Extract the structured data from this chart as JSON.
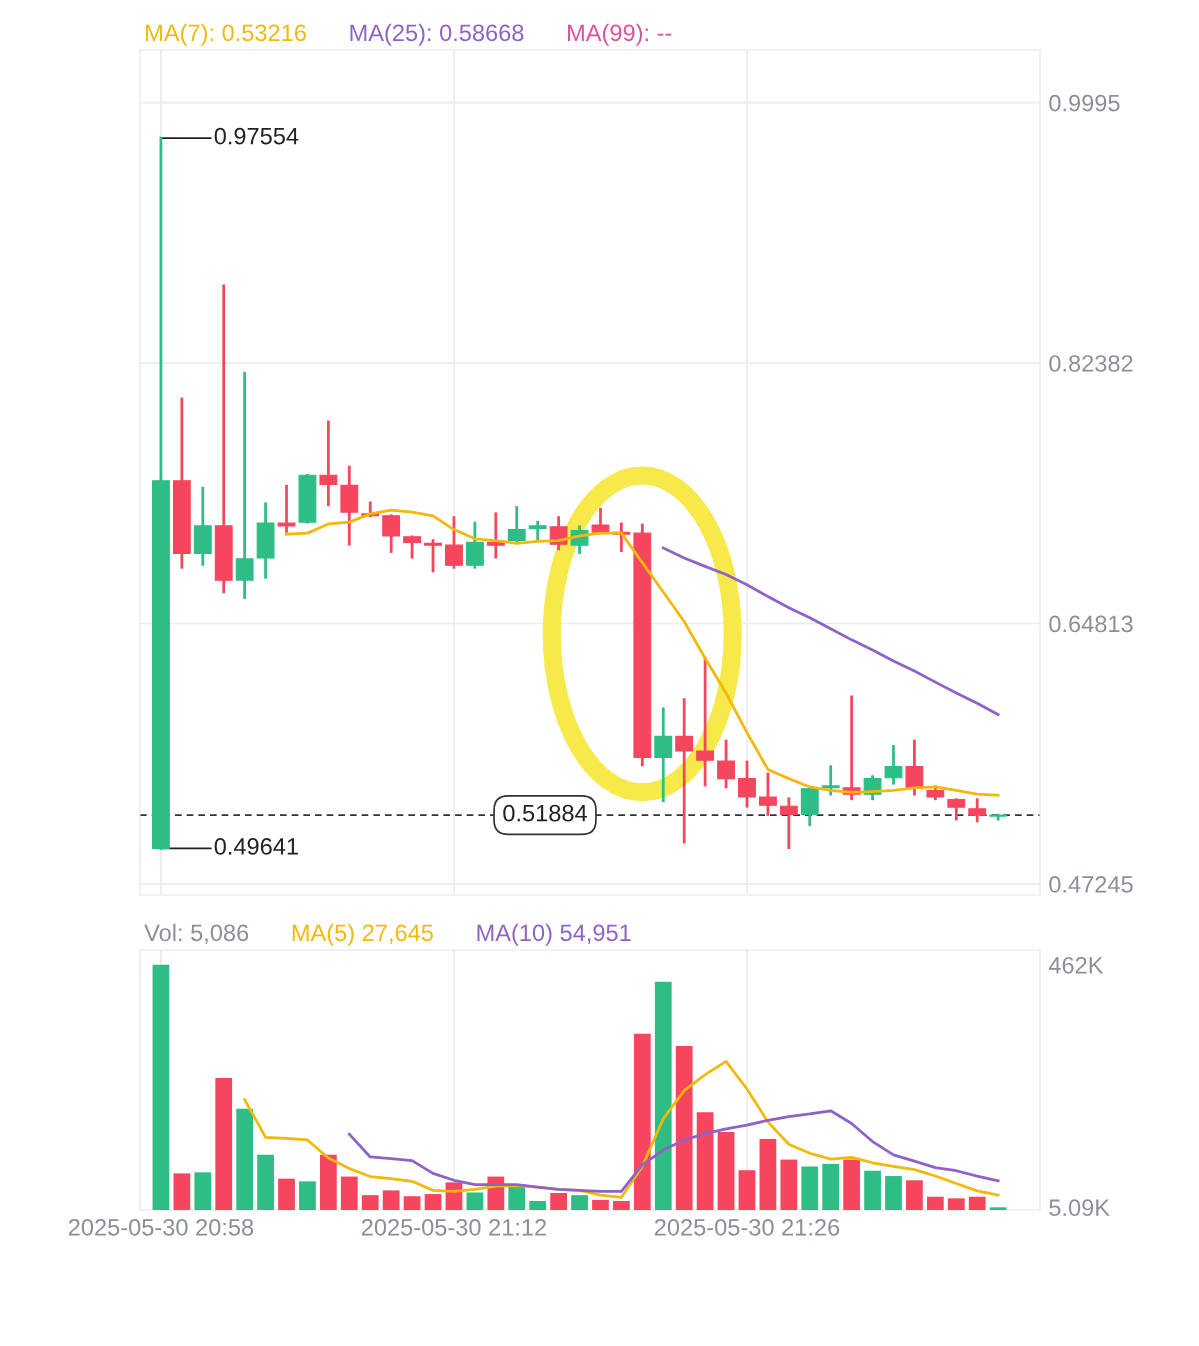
{
  "chart_data": [
    {
      "type": "candlestick",
      "x": [
        "2025-05-30T20:58",
        "2025-05-30T20:59",
        "2025-05-30T21:00",
        "2025-05-30T21:01",
        "2025-05-30T21:02",
        "2025-05-30T21:03",
        "2025-05-30T21:04",
        "2025-05-30T21:05",
        "2025-05-30T21:06",
        "2025-05-30T21:07",
        "2025-05-30T21:08",
        "2025-05-30T21:09",
        "2025-05-30T21:10",
        "2025-05-30T21:11",
        "2025-05-30T21:12",
        "2025-05-30T21:13",
        "2025-05-30T21:14",
        "2025-05-30T21:15",
        "2025-05-30T21:16",
        "2025-05-30T21:17",
        "2025-05-30T21:18",
        "2025-05-30T21:19",
        "2025-05-30T21:20",
        "2025-05-30T21:21",
        "2025-05-30T21:22",
        "2025-05-30T21:23",
        "2025-05-30T21:24",
        "2025-05-30T21:25",
        "2025-05-30T21:26",
        "2025-05-30T21:27",
        "2025-05-30T21:28",
        "2025-05-30T21:29",
        "2025-05-30T21:30",
        "2025-05-30T21:31",
        "2025-05-30T21:32",
        "2025-05-30T21:33",
        "2025-05-30T21:34",
        "2025-05-30T21:35",
        "2025-05-30T21:36",
        "2025-05-30T21:37",
        "2025-05-30T21:38"
      ],
      "ohlc": [
        [
          0.49641,
          0.97554,
          0.49641,
          0.7444
        ],
        [
          0.7444,
          0.7996,
          0.6861,
          0.6954
        ],
        [
          0.6954,
          0.7394,
          0.688,
          0.714
        ],
        [
          0.714,
          0.8758,
          0.6694,
          0.6774
        ],
        [
          0.6774,
          0.817,
          0.6657,
          0.6917
        ],
        [
          0.6923,
          0.7289,
          0.6793,
          0.7159
        ],
        [
          0.7159,
          0.7407,
          0.7103,
          0.714
        ],
        [
          0.7165,
          0.7481,
          0.7165,
          0.7481
        ],
        [
          0.7481,
          0.7841,
          0.7283,
          0.7419
        ],
        [
          0.7413,
          0.7537,
          0.7016,
          0.7233
        ],
        [
          0.7221,
          0.7295,
          0.7208,
          0.7208
        ],
        [
          0.7208,
          0.7208,
          0.6967,
          0.7072
        ],
        [
          0.7066,
          0.7066,
          0.6929,
          0.7029
        ],
        [
          0.7022,
          0.7041,
          0.6836,
          0.701
        ],
        [
          0.701,
          0.7196,
          0.6861,
          0.6874
        ],
        [
          0.6874,
          0.7159,
          0.6861,
          0.7029
        ],
        [
          0.7029,
          0.7221,
          0.6929,
          0.701
        ],
        [
          0.7041,
          0.7264,
          0.7041,
          0.7115
        ],
        [
          0.7122,
          0.7165,
          0.7053,
          0.714
        ],
        [
          0.7134,
          0.7196,
          0.6985,
          0.7016
        ],
        [
          0.701,
          0.7134,
          0.696,
          0.7109
        ],
        [
          0.7146,
          0.7252,
          0.7097,
          0.7097
        ],
        [
          0.7097,
          0.7153,
          0.6973,
          0.7084
        ],
        [
          0.7091,
          0.7146,
          0.5528,
          0.5578
        ],
        [
          0.5578,
          0.5906,
          0.5286,
          0.572
        ],
        [
          0.572,
          0.5968,
          0.5007,
          0.5621
        ],
        [
          0.5621,
          0.6247,
          0.5392,
          0.5559
        ],
        [
          0.5553,
          0.5689,
          0.5379,
          0.5435
        ],
        [
          0.5435,
          0.5547,
          0.5249,
          0.5311
        ],
        [
          0.5311,
          0.5466,
          0.5193,
          0.5255
        ],
        [
          0.5249,
          0.5299,
          0.497,
          0.5193
        ],
        [
          0.5193,
          0.5367,
          0.5125,
          0.5367
        ],
        [
          0.5373,
          0.5516,
          0.533,
          0.5386
        ],
        [
          0.5373,
          0.5987,
          0.5299,
          0.533
        ],
        [
          0.533,
          0.5448,
          0.5299,
          0.5435
        ],
        [
          0.5441,
          0.5652,
          0.5404,
          0.5516
        ],
        [
          0.5516,
          0.5689,
          0.533,
          0.5373
        ],
        [
          0.5355,
          0.5379,
          0.5299,
          0.5311
        ],
        [
          0.5293,
          0.5293,
          0.5162,
          0.5243
        ],
        [
          0.5231,
          0.5293,
          0.515,
          0.51884
        ],
        [
          0.5182,
          0.51884,
          0.5162,
          0.51884
        ]
      ],
      "colors": [
        "#2ebd85",
        "#f6465d",
        "#2ebd85",
        "#f6465d",
        "#2ebd85",
        "#2ebd85",
        "#f6465d",
        "#2ebd85",
        "#f6465d",
        "#f6465d",
        "#f6465d",
        "#f6465d",
        "#f6465d",
        "#f6465d",
        "#f6465d",
        "#2ebd85",
        "#f6465d",
        "#2ebd85",
        "#2ebd85",
        "#f6465d",
        "#2ebd85",
        "#f6465d",
        "#f6465d",
        "#f6465d",
        "#2ebd85",
        "#f6465d",
        "#f6465d",
        "#f6465d",
        "#f6465d",
        "#f6465d",
        "#f6465d",
        "#2ebd85",
        "#2ebd85",
        "#f6465d",
        "#2ebd85",
        "#2ebd85",
        "#f6465d",
        "#f6465d",
        "#f6465d",
        "#f6465d",
        "#2ebd85"
      ],
      "series": [
        {
          "name": "MA(7): 0.53216",
          "type": "line",
          "color": "#f0b90b",
          "values": [
            null,
            null,
            null,
            null,
            null,
            null,
            0.7084,
            0.7091,
            0.7153,
            0.7165,
            0.7221,
            0.7246,
            0.7233,
            0.7208,
            0.7115,
            0.7053,
            0.7041,
            0.7022,
            0.7035,
            0.7041,
            0.7072,
            0.7091,
            0.7091,
            0.6892,
            0.6694,
            0.6495,
            0.6247,
            0.6012,
            0.5745,
            0.5497,
            0.5435,
            0.5379,
            0.5355,
            0.5342,
            0.5348,
            0.5355,
            0.5373,
            0.5379,
            0.5355,
            0.533,
            0.5322
          ]
        },
        {
          "name": "MA(25): 0.58668",
          "type": "line",
          "color": "#8f63c6",
          "values": [
            null,
            null,
            null,
            null,
            null,
            null,
            null,
            null,
            null,
            null,
            null,
            null,
            null,
            null,
            null,
            null,
            null,
            null,
            null,
            null,
            null,
            null,
            null,
            null,
            0.6991,
            0.6923,
            0.6867,
            0.6812,
            0.6743,
            0.6663,
            0.6588,
            0.652,
            0.6446,
            0.6371,
            0.6303,
            0.6229,
            0.6161,
            0.6086,
            0.6012,
            0.5944,
            0.5867
          ]
        },
        {
          "name": "MA(99): --",
          "type": "line",
          "color": "#d9529f",
          "values": [
            null,
            null,
            null,
            null,
            null,
            null,
            null,
            null,
            null,
            null,
            null,
            null,
            null,
            null,
            null,
            null,
            null,
            null,
            null,
            null,
            null,
            null,
            null,
            null,
            null,
            null,
            null,
            null,
            null,
            null,
            null,
            null,
            null,
            null,
            null,
            null,
            null,
            null,
            null,
            null,
            null
          ]
        }
      ],
      "xlim": [
        "2025-05-30T20:57",
        "2025-05-30T21:40"
      ],
      "xticks": [
        {
          "value": "2025-05-30T20:58",
          "label": null
        },
        {
          "value": "2025-05-30T21:12",
          "label": null
        },
        {
          "value": "2025-05-30T21:26",
          "label": null
        }
      ],
      "ylim": [
        0.465,
        1.035
      ],
      "yticks": [
        0.47245,
        0.64813,
        0.82382,
        0.9995
      ],
      "grid": true,
      "tick_labels": "y",
      "ref_lines": [
        {
          "axis": "y",
          "value": 0.51884,
          "label": "0.51884",
          "color": "#333333",
          "line_style": "dashed"
        }
      ],
      "annotations": [
        {
          "text": "0.97554",
          "x": "2025-05-30T20:58",
          "y": 0.97554
        },
        {
          "text": "0.49641",
          "x": "2025-05-30T20:58",
          "y": 0.49641
        }
      ]
    },
    {
      "type": "bar",
      "x": [
        "2025-05-30T20:58",
        "2025-05-30T20:59",
        "2025-05-30T21:00",
        "2025-05-30T21:01",
        "2025-05-30T21:02",
        "2025-05-30T21:03",
        "2025-05-30T21:04",
        "2025-05-30T21:05",
        "2025-05-30T21:06",
        "2025-05-30T21:07",
        "2025-05-30T21:08",
        "2025-05-30T21:09",
        "2025-05-30T21:10",
        "2025-05-30T21:11",
        "2025-05-30T21:12",
        "2025-05-30T21:13",
        "2025-05-30T21:14",
        "2025-05-30T21:15",
        "2025-05-30T21:16",
        "2025-05-30T21:17",
        "2025-05-30T21:18",
        "2025-05-30T21:19",
        "2025-05-30T21:20",
        "2025-05-30T21:21",
        "2025-05-30T21:22",
        "2025-05-30T21:23",
        "2025-05-30T21:24",
        "2025-05-30T21:25",
        "2025-05-30T21:26",
        "2025-05-30T21:27",
        "2025-05-30T21:28",
        "2025-05-30T21:29",
        "2025-05-30T21:30",
        "2025-05-30T21:31",
        "2025-05-30T21:32",
        "2025-05-30T21:33",
        "2025-05-30T21:34",
        "2025-05-30T21:35",
        "2025-05-30T21:36",
        "2025-05-30T21:37",
        "2025-05-30T21:38"
      ],
      "values": [
        462000,
        69000,
        71000,
        249000,
        191000,
        104000,
        59000,
        54000,
        104000,
        63000,
        28000,
        37000,
        26000,
        30000,
        52000,
        33000,
        63000,
        45000,
        17000,
        32000,
        28000,
        19000,
        17000,
        332000,
        430000,
        309000,
        184000,
        147000,
        75000,
        134000,
        95000,
        82000,
        87000,
        95000,
        74000,
        64000,
        56000,
        25000,
        22000,
        25000,
        5086
      ],
      "colors": [
        "#2ebd85",
        "#f6465d",
        "#2ebd85",
        "#f6465d",
        "#2ebd85",
        "#2ebd85",
        "#f6465d",
        "#2ebd85",
        "#f6465d",
        "#f6465d",
        "#f6465d",
        "#f6465d",
        "#f6465d",
        "#f6465d",
        "#f6465d",
        "#2ebd85",
        "#f6465d",
        "#2ebd85",
        "#2ebd85",
        "#f6465d",
        "#2ebd85",
        "#f6465d",
        "#f6465d",
        "#f6465d",
        "#2ebd85",
        "#f6465d",
        "#f6465d",
        "#f6465d",
        "#f6465d",
        "#f6465d",
        "#f6465d",
        "#2ebd85",
        "#2ebd85",
        "#f6465d",
        "#2ebd85",
        "#2ebd85",
        "#f6465d",
        "#f6465d",
        "#f6465d",
        "#f6465d",
        "#2ebd85"
      ],
      "series": [
        {
          "name": "MA(5) 27,645",
          "type": "line",
          "color": "#f0b90b",
          "values": [
            null,
            null,
            null,
            null,
            208000,
            137000,
            135000,
            132000,
            98000,
            78000,
            63000,
            59000,
            54000,
            37000,
            35000,
            39000,
            45000,
            46000,
            43000,
            39000,
            37000,
            28000,
            24000,
            82000,
            172000,
            225000,
            255000,
            280000,
            228000,
            166000,
            124000,
            107000,
            96000,
            99000,
            89000,
            82000,
            76000,
            64000,
            50000,
            36000,
            28000
          ]
        },
        {
          "name": "MA(10) 54,951",
          "type": "line",
          "color": "#8f63c6",
          "values": [
            null,
            null,
            null,
            null,
            null,
            null,
            null,
            null,
            null,
            143000,
            100000,
            97000,
            93000,
            69000,
            56000,
            48000,
            48000,
            48000,
            43000,
            39000,
            37000,
            35000,
            35000,
            85000,
            113000,
            132000,
            144000,
            153000,
            160000,
            169000,
            176000,
            181000,
            187000,
            163000,
            129000,
            104000,
            92000,
            80000,
            74000,
            64000,
            55000
          ]
        }
      ],
      "xlim": [
        "2025-05-30T20:57",
        "2025-05-30T21:40"
      ],
      "xticks": [
        {
          "value": "2025-05-30T20:58",
          "label": "2025-05-30 20:58"
        },
        {
          "value": "2025-05-30T21:12",
          "label": "2025-05-30 21:12"
        },
        {
          "value": "2025-05-30T21:26",
          "label": "2025-05-30 21:26"
        }
      ],
      "ylim": [
        0,
        490000
      ],
      "yticks": [
        {
          "value": 5086,
          "label": "5.09K"
        },
        {
          "value": 462000,
          "label": "462K"
        }
      ],
      "grid": "x",
      "annotations": [
        "Vol: 5,086"
      ]
    }
  ]
}
